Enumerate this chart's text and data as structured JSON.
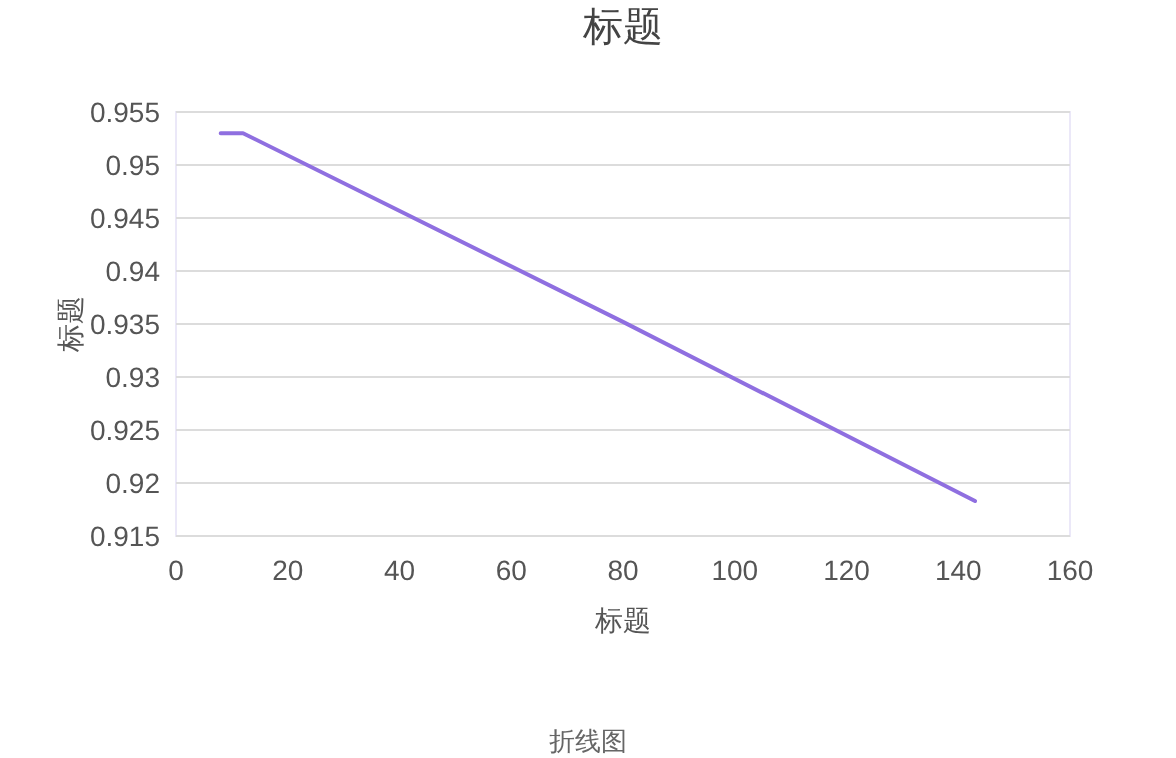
{
  "chart_data": {
    "type": "line",
    "title": "标题",
    "xlabel": "标题",
    "ylabel": "标题",
    "x": [
      8,
      12,
      80,
      143
    ],
    "series": [
      {
        "color": "#8f6fe0",
        "values": [
          0.953,
          0.953,
          0.9352,
          0.9183
        ]
      }
    ],
    "xlim": [
      0,
      160
    ],
    "xticks": [
      0,
      20,
      40,
      60,
      80,
      100,
      120,
      140,
      160
    ],
    "ylim": [
      0.915,
      0.955
    ],
    "yticks": [
      0.915,
      0.92,
      0.925,
      0.93,
      0.935,
      0.94,
      0.945,
      0.95,
      0.955
    ],
    "grid": "y",
    "marker": "none",
    "line_style": "solid",
    "annotations": [
      "折线图"
    ]
  }
}
